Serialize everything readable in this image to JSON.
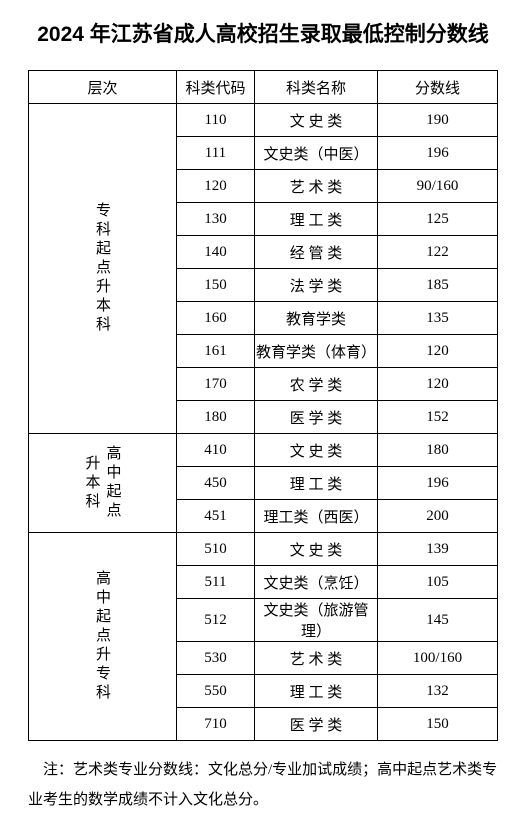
{
  "title": "2024 年江苏省成人高校招生录取最低控制分数线",
  "headers": {
    "level": "层次",
    "code": "科类代码",
    "name": "科类名称",
    "score": "分数线"
  },
  "groups": [
    {
      "level": "专科起点升本科",
      "rows": [
        {
          "code": "110",
          "name": "文 史 类",
          "name_spaced": true,
          "score": "190"
        },
        {
          "code": "111",
          "name": "文史类（中医）",
          "name_spaced": false,
          "score": "196"
        },
        {
          "code": "120",
          "name": "艺 术 类",
          "name_spaced": true,
          "score": "90/160"
        },
        {
          "code": "130",
          "name": "理 工 类",
          "name_spaced": true,
          "score": "125"
        },
        {
          "code": "140",
          "name": "经 管 类",
          "name_spaced": true,
          "score": "122"
        },
        {
          "code": "150",
          "name": "法 学 类",
          "name_spaced": true,
          "score": "185"
        },
        {
          "code": "160",
          "name": "教育学类",
          "name_spaced": false,
          "score": "135"
        },
        {
          "code": "161",
          "name": "教育学类（体育）",
          "name_spaced": false,
          "score": "120"
        },
        {
          "code": "170",
          "name": "农 学 类",
          "name_spaced": true,
          "score": "120"
        },
        {
          "code": "180",
          "name": "医 学 类",
          "name_spaced": true,
          "score": "152"
        }
      ]
    },
    {
      "level": "高中起点升本科",
      "rows": [
        {
          "code": "410",
          "name": "文 史 类",
          "name_spaced": true,
          "score": "180"
        },
        {
          "code": "450",
          "name": "理 工 类",
          "name_spaced": true,
          "score": "196"
        },
        {
          "code": "451",
          "name": "理工类（西医）",
          "name_spaced": false,
          "score": "200"
        }
      ]
    },
    {
      "level": "高中起点升专科",
      "rows": [
        {
          "code": "510",
          "name": "文 史 类",
          "name_spaced": true,
          "score": "139"
        },
        {
          "code": "511",
          "name": "文史类（烹饪）",
          "name_spaced": false,
          "score": "105"
        },
        {
          "code": "512",
          "name": "文史类（旅游管理）",
          "name_spaced": false,
          "score": "145"
        },
        {
          "code": "530",
          "name": "艺 术 类",
          "name_spaced": true,
          "score": "100/160"
        },
        {
          "code": "550",
          "name": "理 工 类",
          "name_spaced": true,
          "score": "132"
        },
        {
          "code": "710",
          "name": "医 学 类",
          "name_spaced": true,
          "score": "150"
        }
      ]
    }
  ],
  "footnote": "注：艺术类专业分数线：文化总分/专业加试成绩；高中起点艺术类专业考生的数学成绩不计入文化总分。"
}
